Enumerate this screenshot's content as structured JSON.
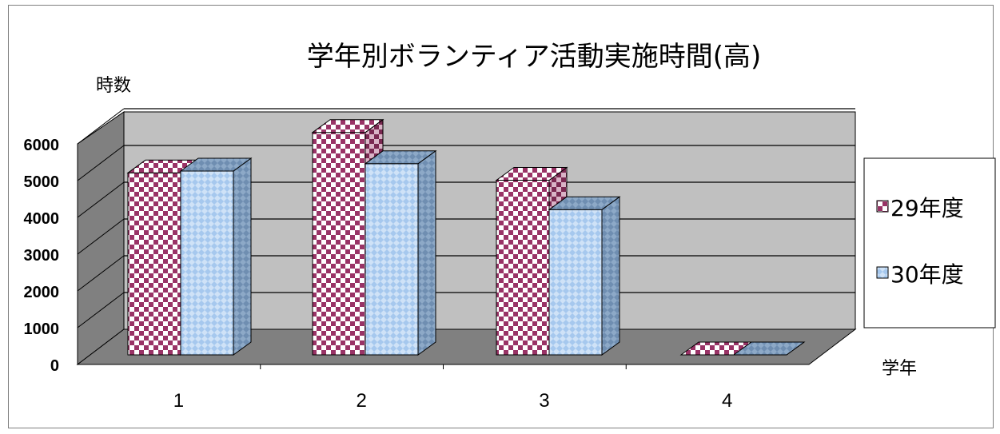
{
  "chart_data": {
    "type": "bar",
    "title": "学年別ボランティア活動実施時間(高)",
    "ylabel": "時数",
    "xlabel": "学年",
    "categories": [
      "1",
      "2",
      "3",
      "4"
    ],
    "series": [
      {
        "name": "29年度",
        "values": [
          4950,
          6050,
          4750,
          0
        ],
        "color": "#993366"
      },
      {
        "name": "30年度",
        "values": [
          5000,
          5200,
          3950,
          0
        ],
        "color": "#a6c8ee"
      }
    ],
    "yticks": [
      "0",
      "1000",
      "2000",
      "3000",
      "4000",
      "5000",
      "6000"
    ],
    "ylim": [
      0,
      6000
    ],
    "grid": true,
    "legend_position": "right",
    "wall_color": "#c0c0c0",
    "floor_color": "#808080"
  }
}
